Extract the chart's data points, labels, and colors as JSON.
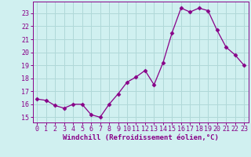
{
  "x": [
    0,
    1,
    2,
    3,
    4,
    5,
    6,
    7,
    8,
    9,
    10,
    11,
    12,
    13,
    14,
    15,
    16,
    17,
    18,
    19,
    20,
    21,
    22,
    23
  ],
  "y": [
    16.4,
    16.3,
    15.9,
    15.7,
    16.0,
    16.0,
    15.2,
    15.0,
    16.0,
    16.8,
    17.7,
    18.1,
    18.6,
    17.5,
    19.2,
    21.5,
    23.4,
    23.1,
    23.4,
    23.2,
    21.7,
    20.4,
    19.8,
    19.0
  ],
  "line_color": "#880088",
  "marker": "D",
  "marker_size": 2.5,
  "bg_color": "#d0f0f0",
  "grid_color": "#b0d8d8",
  "axis_color": "#880088",
  "xlabel": "Windchill (Refroidissement éolien,°C)",
  "xlabel_fontsize": 6.5,
  "ytick_labels": [
    "15",
    "16",
    "17",
    "18",
    "19",
    "20",
    "21",
    "22",
    "23"
  ],
  "ytick_values": [
    15,
    16,
    17,
    18,
    19,
    20,
    21,
    22,
    23
  ],
  "ylim": [
    14.6,
    23.9
  ],
  "xlim": [
    -0.5,
    23.5
  ],
  "xtick_labels": [
    "0",
    "1",
    "2",
    "3",
    "4",
    "5",
    "6",
    "7",
    "8",
    "9",
    "10",
    "11",
    "12",
    "13",
    "14",
    "15",
    "16",
    "17",
    "18",
    "19",
    "20",
    "21",
    "22",
    "23"
  ],
  "tick_fontsize": 6.0,
  "linewidth": 0.9
}
